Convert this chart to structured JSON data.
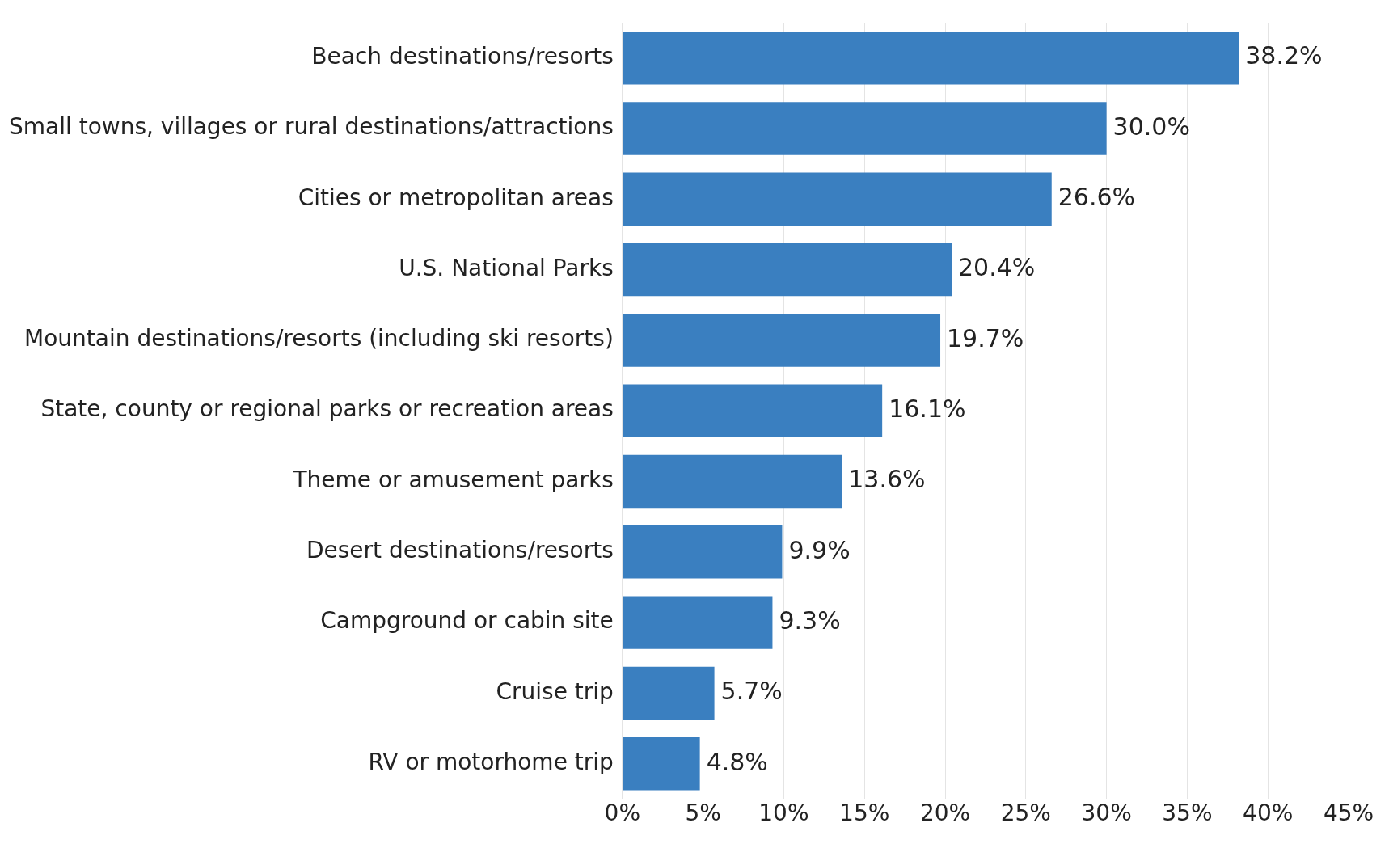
{
  "chart_data": {
    "type": "bar",
    "orientation": "horizontal",
    "categories": [
      "Beach destinations/resorts",
      "Small towns, villages or rural destinations/attractions",
      "Cities or metropolitan areas",
      "U.S. National Parks",
      "Mountain destinations/resorts (including ski resorts)",
      "State, county or regional parks or recreation areas",
      "Theme or amusement parks",
      "Desert destinations/resorts",
      "Campground or cabin site",
      "Cruise trip",
      "RV or motorhome trip"
    ],
    "values": [
      38.2,
      30.0,
      26.6,
      20.4,
      19.7,
      16.1,
      13.6,
      9.9,
      9.3,
      5.7,
      4.8
    ],
    "value_labels": [
      "38.2%",
      "30.0%",
      "26.6%",
      "20.4%",
      "19.7%",
      "16.1%",
      "13.6%",
      "9.9%",
      "9.3%",
      "5.7%",
      "4.8%"
    ],
    "color": "#3a7fc0",
    "xlim": [
      0,
      45
    ],
    "xticks": [
      {
        "value": 0,
        "label": "0%"
      },
      {
        "value": 5,
        "label": "5%"
      },
      {
        "value": 10,
        "label": "10%"
      },
      {
        "value": 15,
        "label": "15%"
      },
      {
        "value": 20,
        "label": "20%"
      },
      {
        "value": 25,
        "label": "25%"
      },
      {
        "value": 30,
        "label": "30%"
      },
      {
        "value": 35,
        "label": "35%"
      },
      {
        "value": 40,
        "label": "40%"
      },
      {
        "value": 45,
        "label": "45%"
      }
    ],
    "grid": "x",
    "legend": false
  }
}
